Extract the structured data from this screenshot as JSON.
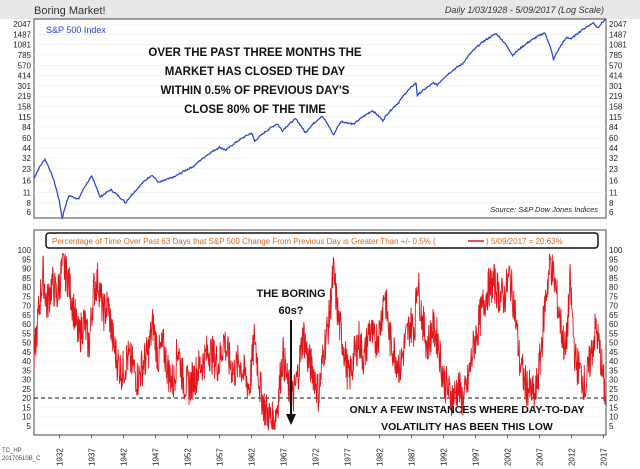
{
  "header": {
    "title": "Boring Market!",
    "range_note": "Daily 1/03/1928 - 5/09/2017 (Log Scale)",
    "tag1": "TC_HP",
    "tag2": "20170510B_C"
  },
  "chart_data": [
    {
      "type": "line",
      "series_label": "S&P 500 Index",
      "annotation": [
        "OVER THE PAST THREE MONTHS THE",
        "MARKET HAS CLOSED THE DAY",
        "WITHIN 0.5% OF PREVIOUS DAY'S",
        "CLOSE 80% OF THE TIME"
      ],
      "source": "Source: S&P Dow Jones Indices",
      "yscale": "log",
      "ylim": [
        5,
        2400
      ],
      "xlim": [
        1928,
        2017.4
      ],
      "yticks": [
        2047,
        1487,
        1081,
        785,
        570,
        414,
        301,
        219,
        158,
        115,
        84,
        60,
        44,
        32,
        23,
        16,
        11,
        8,
        6
      ],
      "color": "#1f3fd6",
      "points": [
        [
          1928,
          17
        ],
        [
          1929.7,
          31
        ],
        [
          1930.5,
          22
        ],
        [
          1931.5,
          12
        ],
        [
          1932.4,
          4.8
        ],
        [
          1933.5,
          10
        ],
        [
          1935,
          9
        ],
        [
          1937,
          18
        ],
        [
          1938.3,
          9.5
        ],
        [
          1940,
          12
        ],
        [
          1942.3,
          8
        ],
        [
          1944,
          12
        ],
        [
          1946.4,
          19
        ],
        [
          1947.5,
          15
        ],
        [
          1950,
          18
        ],
        [
          1953,
          25
        ],
        [
          1957,
          45
        ],
        [
          1958,
          41
        ],
        [
          1962,
          70
        ],
        [
          1962.5,
          54
        ],
        [
          1966,
          93
        ],
        [
          1966.8,
          75
        ],
        [
          1968.9,
          108
        ],
        [
          1970.4,
          70
        ],
        [
          1973,
          118
        ],
        [
          1974.8,
          65
        ],
        [
          1976,
          100
        ],
        [
          1978,
          92
        ],
        [
          1980.9,
          140
        ],
        [
          1982.5,
          103
        ],
        [
          1985,
          180
        ],
        [
          1987.7,
          330
        ],
        [
          1987.9,
          225
        ],
        [
          1990.5,
          330
        ],
        [
          1991,
          310
        ],
        [
          1995,
          600
        ],
        [
          1998,
          1150
        ],
        [
          2000.2,
          1527
        ],
        [
          2002.8,
          777
        ],
        [
          2007.8,
          1565
        ],
        [
          2009.2,
          677
        ],
        [
          2011.3,
          1360
        ],
        [
          2012,
          1300
        ],
        [
          2015.4,
          2130
        ],
        [
          2016.1,
          1830
        ],
        [
          2017.35,
          2390
        ]
      ]
    },
    {
      "type": "line",
      "series_label": "Percentage of Time Over Past 63 Days that S&P 500 Change From Previous Day is Greater Than +/- 0.5% (",
      "latest_label": ") 5/09/2017 = 20.63%",
      "color": "#e0161b",
      "ylim": [
        0,
        100
      ],
      "xlim": [
        1928,
        2017.4
      ],
      "yticks": [
        100,
        95,
        90,
        85,
        80,
        75,
        70,
        65,
        60,
        55,
        50,
        45,
        40,
        35,
        30,
        25,
        20,
        15,
        10,
        5
      ],
      "xticks": [
        1932,
        1937,
        1942,
        1947,
        1952,
        1957,
        1962,
        1967,
        1972,
        1977,
        1982,
        1987,
        1992,
        1997,
        2002,
        2007,
        2012,
        2017
      ],
      "threshold": 20,
      "annotation_top": [
        "THE BORING",
        "60s?"
      ],
      "annotation_bottom": [
        "ONLY A FEW INSTANCES WHERE DAY-TO-DAY",
        "VOLATILITY HAS BEEN THIS LOW"
      ],
      "points": [
        [
          1928,
          40
        ],
        [
          1928.6,
          62
        ],
        [
          1929.4,
          88
        ],
        [
          1930,
          70
        ],
        [
          1930.8,
          82
        ],
        [
          1931.6,
          75
        ],
        [
          1932.5,
          92
        ],
        [
          1933.3,
          85
        ],
        [
          1934.2,
          68
        ],
        [
          1935,
          52
        ],
        [
          1935.8,
          62
        ],
        [
          1936.6,
          48
        ],
        [
          1937.3,
          78
        ],
        [
          1938,
          84
        ],
        [
          1938.8,
          66
        ],
        [
          1939.6,
          70
        ],
        [
          1940.3,
          52
        ],
        [
          1941,
          40
        ],
        [
          1941.8,
          34
        ],
        [
          1942.6,
          42
        ],
        [
          1943.4,
          38
        ],
        [
          1944.2,
          30
        ],
        [
          1945,
          38
        ],
        [
          1945.8,
          44
        ],
        [
          1946.6,
          60
        ],
        [
          1947.4,
          42
        ],
        [
          1948.2,
          48
        ],
        [
          1949,
          34
        ],
        [
          1949.8,
          28
        ],
        [
          1950.5,
          48
        ],
        [
          1951.3,
          30
        ],
        [
          1952.1,
          26
        ],
        [
          1952.9,
          30
        ],
        [
          1953.7,
          36
        ],
        [
          1954.5,
          40
        ],
        [
          1955.3,
          46
        ],
        [
          1956.1,
          42
        ],
        [
          1956.9,
          38
        ],
        [
          1957.7,
          52
        ],
        [
          1958.5,
          40
        ],
        [
          1959.3,
          34
        ],
        [
          1960.1,
          40
        ],
        [
          1960.9,
          32
        ],
        [
          1961.7,
          26
        ],
        [
          1962.5,
          54
        ],
        [
          1963.3,
          26
        ],
        [
          1964.1,
          14
        ],
        [
          1964.9,
          9
        ],
        [
          1965.5,
          6
        ],
        [
          1966.1,
          18
        ],
        [
          1966.9,
          44
        ],
        [
          1967.7,
          26
        ],
        [
          1968.5,
          20
        ],
        [
          1969.3,
          34
        ],
        [
          1970.1,
          55
        ],
        [
          1970.9,
          40
        ],
        [
          1971.7,
          34
        ],
        [
          1972.5,
          22
        ],
        [
          1973.3,
          46
        ],
        [
          1974.1,
          62
        ],
        [
          1974.8,
          88
        ],
        [
          1975.6,
          62
        ],
        [
          1976.4,
          48
        ],
        [
          1977.2,
          30
        ],
        [
          1978,
          42
        ],
        [
          1978.8,
          52
        ],
        [
          1979.6,
          40
        ],
        [
          1980.4,
          58
        ],
        [
          1981.2,
          50
        ],
        [
          1982,
          56
        ],
        [
          1982.8,
          78
        ],
        [
          1983.6,
          52
        ],
        [
          1984.4,
          44
        ],
        [
          1985.2,
          36
        ],
        [
          1986,
          50
        ],
        [
          1986.8,
          60
        ],
        [
          1987.5,
          58
        ],
        [
          1987.9,
          85
        ],
        [
          1988.7,
          62
        ],
        [
          1989.5,
          48
        ],
        [
          1990.3,
          58
        ],
        [
          1991.1,
          52
        ],
        [
          1991.9,
          32
        ],
        [
          1992.7,
          24
        ],
        [
          1993.5,
          20
        ],
        [
          1994.3,
          26
        ],
        [
          1995.1,
          18
        ],
        [
          1995.9,
          30
        ],
        [
          1996.7,
          48
        ],
        [
          1997.5,
          60
        ],
        [
          1998.3,
          72
        ],
        [
          1999.1,
          80
        ],
        [
          1999.9,
          82
        ],
        [
          2000.7,
          76
        ],
        [
          2001.5,
          74
        ],
        [
          2002.3,
          86
        ],
        [
          2003.1,
          70
        ],
        [
          2003.9,
          40
        ],
        [
          2004.7,
          28
        ],
        [
          2005.5,
          24
        ],
        [
          2006.3,
          20
        ],
        [
          2007.1,
          40
        ],
        [
          2007.9,
          72
        ],
        [
          2008.7,
          94
        ],
        [
          2009.5,
          80
        ],
        [
          2010.3,
          60
        ],
        [
          2011.1,
          44
        ],
        [
          2011.8,
          82
        ],
        [
          2012.6,
          40
        ],
        [
          2013.4,
          34
        ],
        [
          2014.2,
          26
        ],
        [
          2015,
          42
        ],
        [
          2015.8,
          58
        ],
        [
          2016.5,
          44
        ],
        [
          2017.1,
          26
        ],
        [
          2017.35,
          20.63
        ]
      ]
    }
  ]
}
